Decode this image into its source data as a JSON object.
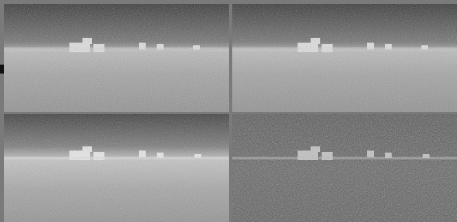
{
  "figure": {
    "panels": [
      {
        "id": "top-left",
        "noise_level": "medium",
        "contrast": "high"
      },
      {
        "id": "top-right",
        "noise_level": "medium",
        "contrast": "high"
      },
      {
        "id": "bottom-left",
        "noise_level": "medium-low",
        "contrast": "high"
      },
      {
        "id": "bottom-right",
        "noise_level": "high",
        "contrast": "low"
      }
    ],
    "colors": {
      "divider": "#7a7a7a",
      "marker": "#111111"
    }
  }
}
